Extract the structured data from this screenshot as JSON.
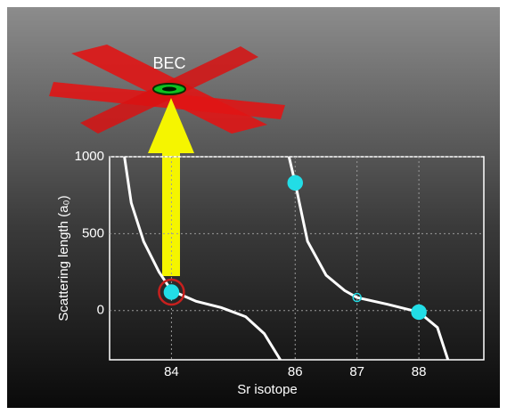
{
  "chart_data": {
    "type": "scatter",
    "annotation": "BEC",
    "x_label": "Sr isotope",
    "y_label": "Scattering length (a₀)",
    "xlim": [
      83.0,
      89.05
    ],
    "ylim": [
      -320,
      1000
    ],
    "xticks": [
      84,
      86,
      87,
      88
    ],
    "yticks": [
      0,
      500,
      1000
    ],
    "grid": true,
    "points": {
      "x": [
        84,
        86,
        87,
        88
      ],
      "values": [
        120,
        830,
        85,
        -10
      ],
      "filled": [
        true,
        true,
        false,
        true
      ],
      "color": "#22dde6"
    },
    "highlight_index": 0,
    "highlight_color": "#c8201e",
    "curves": [
      {
        "color": "#ffffff",
        "x": [
          83.24,
          83.35,
          83.55,
          83.8,
          84.0,
          84.4,
          84.8,
          85.2,
          85.5,
          85.76
        ],
        "values": [
          1000,
          700,
          450,
          250,
          130,
          60,
          20,
          -40,
          -150,
          -320
        ]
      },
      {
        "color": "#ffffff",
        "x": [
          85.9,
          86.0,
          86.2,
          86.5,
          86.8,
          87.0,
          87.5,
          88.0,
          88.3,
          88.47
        ],
        "values": [
          1000,
          830,
          450,
          230,
          130,
          85,
          40,
          -10,
          -110,
          -320
        ]
      }
    ]
  }
}
